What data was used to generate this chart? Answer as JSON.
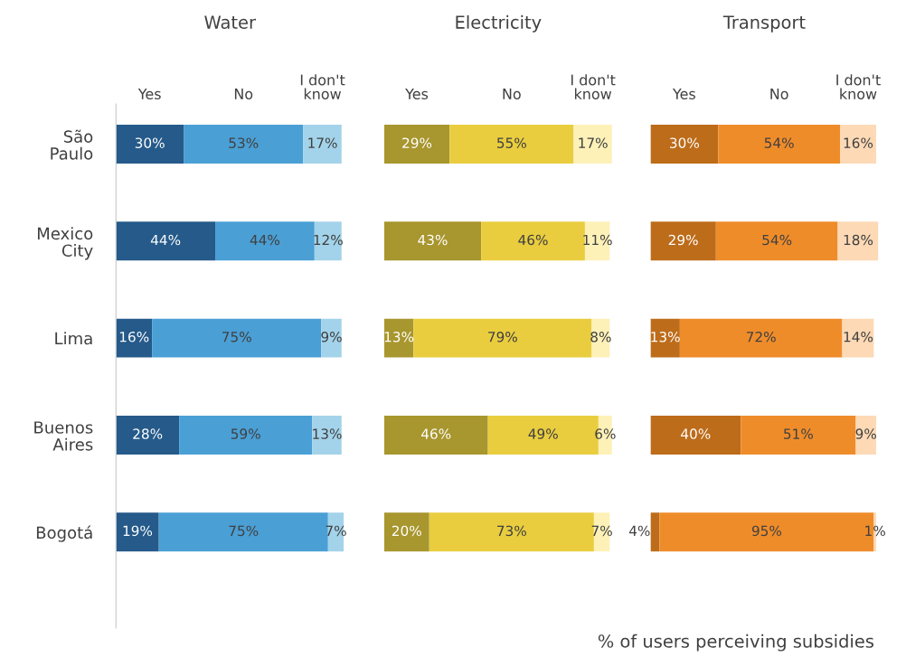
{
  "chart_data": [
    {
      "type": "bar",
      "title": "Water",
      "orientation": "horizontal",
      "stacked": true,
      "tick_labels": "y",
      "categories": [
        "São\nPaulo",
        "Mexico\nCity",
        "Lima",
        "Buenos\nAires",
        "Bogotá"
      ],
      "series": [
        {
          "name": "Yes",
          "color": "#255a8a",
          "values": [
            30,
            44,
            16,
            28,
            19
          ],
          "value_labels": [
            "30%",
            "44%",
            "16%",
            "28%",
            "19%"
          ]
        },
        {
          "name": "No",
          "color": "#4a9fd5",
          "values": [
            53,
            44,
            75,
            59,
            75
          ],
          "value_labels": [
            "53%",
            "44%",
            "75%",
            "59%",
            "75%"
          ]
        },
        {
          "name": "I don't\nknow",
          "color": "#a3d3ea",
          "values": [
            17,
            12,
            9,
            13,
            7
          ],
          "value_labels": [
            "17%",
            "12%",
            "9%",
            "13%",
            "7%"
          ]
        }
      ]
    },
    {
      "type": "bar",
      "title": "Electricity",
      "orientation": "horizontal",
      "stacked": true,
      "tick_labels": false,
      "categories": [
        null,
        null,
        null,
        null,
        null
      ],
      "series": [
        {
          "name": "Yes",
          "color": "#a8962e",
          "values": [
            29,
            43,
            13,
            46,
            20
          ],
          "value_labels": [
            "29%",
            "43%",
            "13%",
            "46%",
            "20%"
          ]
        },
        {
          "name": "No",
          "color": "#e9cd3f",
          "values": [
            55,
            46,
            79,
            49,
            73
          ],
          "value_labels": [
            "55%",
            "46%",
            "79%",
            "49%",
            "73%"
          ]
        },
        {
          "name": "I don't\nknow",
          "color": "#fdf1b8",
          "values": [
            17,
            11,
            8,
            6,
            7
          ],
          "value_labels": [
            "17%",
            "11%",
            "8%",
            "6%",
            "7%"
          ]
        }
      ]
    },
    {
      "type": "bar",
      "title": "Transport",
      "orientation": "horizontal",
      "stacked": true,
      "tick_labels": false,
      "categories": [
        null,
        null,
        null,
        null,
        null
      ],
      "annotations": [
        "% of users perceiving subsidies"
      ],
      "series": [
        {
          "name": "Yes",
          "color": "#bd6c1a",
          "values": [
            30,
            29,
            13,
            40,
            4
          ],
          "value_labels": [
            "30%",
            "29%",
            "13%",
            "40%",
            "4%"
          ]
        },
        {
          "name": "No",
          "color": "#ef8c2a",
          "values": [
            54,
            54,
            72,
            51,
            95
          ],
          "value_labels": [
            "54%",
            "54%",
            "72%",
            "51%",
            "95%"
          ]
        },
        {
          "name": "I don't\nknow",
          "color": "#fdd9b5",
          "values": [
            16,
            18,
            14,
            9,
            1
          ],
          "value_labels": [
            "16%",
            "18%",
            "14%",
            "9%",
            "1%"
          ]
        }
      ]
    }
  ]
}
